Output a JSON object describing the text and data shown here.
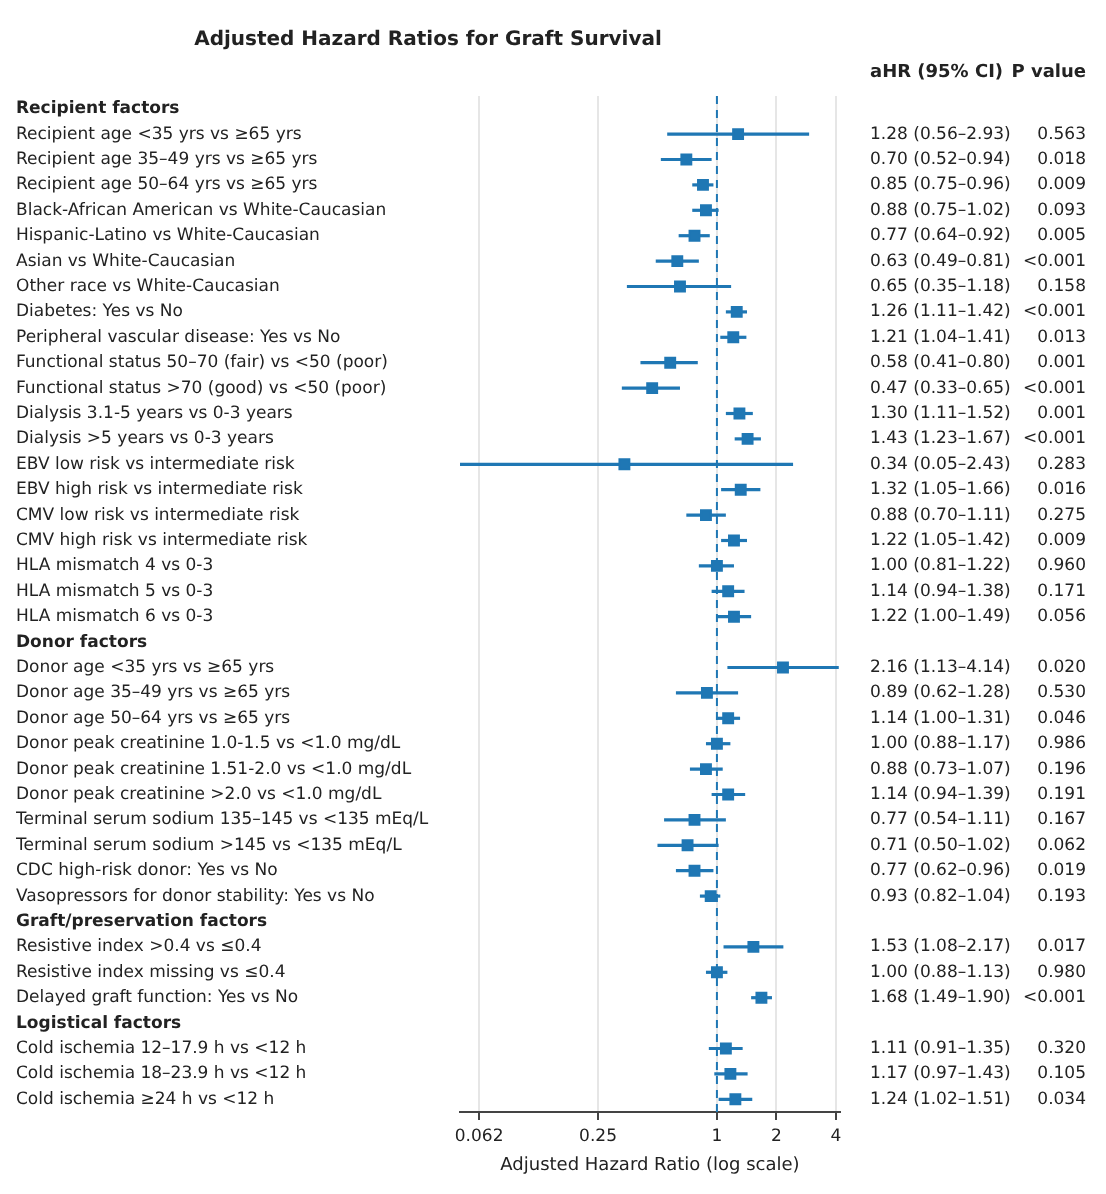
{
  "chart_data": {
    "type": "scatter",
    "orientation": "horizontal",
    "title": "Adjusted Hazard Ratios for Graft Survival",
    "xlabel": "Adjusted Hazard Ratio (log scale)",
    "categories": [
      "Recipient factors",
      "Recipient age <35 yrs vs ≥65 yrs",
      "Recipient age 35–49 yrs vs ≥65 yrs",
      "Recipient age 50–64 yrs vs ≥65 yrs",
      "Black-African American vs White-Caucasian",
      "Hispanic-Latino vs White-Caucasian",
      "Asian vs White-Caucasian",
      "Other race vs White-Caucasian",
      "Diabetes: Yes vs No",
      "Peripheral vascular disease: Yes vs No",
      "Functional status 50–70 (fair) vs <50 (poor)",
      "Functional status >70 (good) vs <50 (poor)",
      "Dialysis 3.1-5 years vs 0-3 years",
      "Dialysis >5 years vs 0-3 years",
      "EBV low risk vs intermediate risk",
      "EBV high risk vs intermediate risk",
      "CMV low risk vs intermediate risk",
      "CMV high risk vs intermediate risk",
      "HLA mismatch 4 vs 0-3",
      "HLA mismatch 5 vs 0-3",
      "HLA mismatch 6 vs 0-3",
      "Donor factors",
      "Donor age <35 yrs vs ≥65 yrs",
      "Donor age 35–49 yrs vs ≥65 yrs",
      "Donor age 50–64 yrs vs ≥65 yrs",
      "Donor peak creatinine 1.0-1.5 vs <1.0 mg/dL",
      "Donor peak creatinine 1.51-2.0 vs <1.0 mg/dL",
      "Donor peak creatinine >2.0 vs <1.0 mg/dL",
      "Terminal serum sodium 135–145 vs <135 mEq/L",
      "Terminal serum sodium >145 vs <135 mEq/L",
      "CDC high-risk donor: Yes vs No",
      "Vasopressors for donor stability: Yes vs No",
      "Graft/preservation factors",
      "Resistive index >0.4 vs ≤0.4",
      "Resistive index missing vs ≤0.4",
      "Delayed graft function: Yes vs No",
      "Logistical factors",
      "Cold ischemia 12–17.9 h vs <12 h",
      "Cold ischemia 18–23.9 h vs <12 h",
      "Cold ischemia ≥24 h vs <12 h"
    ],
    "values": [
      null,
      1.28,
      0.7,
      0.85,
      0.88,
      0.77,
      0.63,
      0.65,
      1.26,
      1.21,
      0.58,
      0.47,
      1.3,
      1.43,
      0.34,
      1.32,
      0.88,
      1.22,
      1.0,
      1.14,
      1.22,
      null,
      2.16,
      0.89,
      1.14,
      1.0,
      0.88,
      1.14,
      0.77,
      0.71,
      0.77,
      0.93,
      null,
      1.53,
      1.0,
      1.68,
      null,
      1.11,
      1.17,
      1.24
    ],
    "errors": [
      null,
      [
        0.56,
        2.93
      ],
      [
        0.52,
        0.94
      ],
      [
        0.75,
        0.96
      ],
      [
        0.75,
        1.02
      ],
      [
        0.64,
        0.92
      ],
      [
        0.49,
        0.81
      ],
      [
        0.35,
        1.18
      ],
      [
        1.11,
        1.42
      ],
      [
        1.04,
        1.41
      ],
      [
        0.41,
        0.8
      ],
      [
        0.33,
        0.65
      ],
      [
        1.11,
        1.52
      ],
      [
        1.23,
        1.67
      ],
      [
        0.05,
        2.43
      ],
      [
        1.05,
        1.66
      ],
      [
        0.7,
        1.11
      ],
      [
        1.05,
        1.42
      ],
      [
        0.81,
        1.22
      ],
      [
        0.94,
        1.38
      ],
      [
        1.0,
        1.49
      ],
      null,
      [
        1.13,
        4.14
      ],
      [
        0.62,
        1.28
      ],
      [
        1.0,
        1.31
      ],
      [
        0.88,
        1.17
      ],
      [
        0.73,
        1.07
      ],
      [
        0.94,
        1.39
      ],
      [
        0.54,
        1.11
      ],
      [
        0.5,
        1.02
      ],
      [
        0.62,
        0.96
      ],
      [
        0.82,
        1.04
      ],
      null,
      [
        1.08,
        2.17
      ],
      [
        0.88,
        1.13
      ],
      [
        1.49,
        1.9
      ],
      null,
      [
        0.91,
        1.35
      ],
      [
        0.97,
        1.43
      ],
      [
        1.02,
        1.51
      ]
    ],
    "value_labels": [
      null,
      "1.28 (0.56–2.93)",
      "0.70 (0.52–0.94)",
      "0.85 (0.75–0.96)",
      "0.88 (0.75–1.02)",
      "0.77 (0.64–0.92)",
      "0.63 (0.49–0.81)",
      "0.65 (0.35–1.18)",
      "1.26 (1.11–1.42)",
      "1.21 (1.04–1.41)",
      "0.58 (0.41–0.80)",
      "0.47 (0.33–0.65)",
      "1.30 (1.11–1.52)",
      "1.43 (1.23–1.67)",
      "0.34 (0.05–2.43)",
      "1.32 (1.05–1.66)",
      "0.88 (0.70–1.11)",
      "1.22 (1.05–1.42)",
      "1.00 (0.81–1.22)",
      "1.14 (0.94–1.38)",
      "1.22 (1.00–1.49)",
      null,
      "2.16 (1.13–4.14)",
      "0.89 (0.62–1.28)",
      "1.14 (1.00–1.31)",
      "1.00 (0.88–1.17)",
      "0.88 (0.73–1.07)",
      "1.14 (0.94–1.39)",
      "0.77 (0.54–1.11)",
      "0.71 (0.50–1.02)",
      "0.77 (0.62–0.96)",
      "0.93 (0.82–1.04)",
      null,
      "1.53 (1.08–2.17)",
      "1.00 (0.88–1.13)",
      "1.68 (1.49–1.90)",
      null,
      "1.11 (0.91–1.35)",
      "1.17 (0.97–1.43)",
      "1.24 (1.02–1.51)"
    ],
    "annotations": [
      "aHR (95% CI)",
      "P value",
      "0.563",
      "0.018",
      "0.009",
      "0.093",
      "0.005",
      "<0.001",
      "0.158",
      "<0.001",
      "0.013",
      "0.001",
      "<0.001",
      "0.001",
      "<0.001",
      "0.283",
      "0.016",
      "0.275",
      "0.009",
      "0.960",
      "0.171",
      "0.056",
      "0.020",
      "0.530",
      "0.046",
      "0.986",
      "0.196",
      "0.191",
      "0.167",
      "0.062",
      "0.019",
      "0.193",
      "0.017",
      "0.980",
      "<0.001",
      "0.320",
      "0.105",
      "0.034"
    ],
    "color": "#1f77b4",
    "marker": "square",
    "log": "x",
    "xlim": [
      0.05,
      4.2
    ],
    "xticks": [
      {
        "value": 0.0625,
        "label": "0.062"
      },
      {
        "value": 0.25,
        "label": "0.25"
      },
      1,
      2,
      4
    ],
    "grid": "x",
    "ref_lines": [
      {
        "axis": "x",
        "value": 1,
        "color": "#1f77b4",
        "line_style": "dashed"
      }
    ]
  }
}
